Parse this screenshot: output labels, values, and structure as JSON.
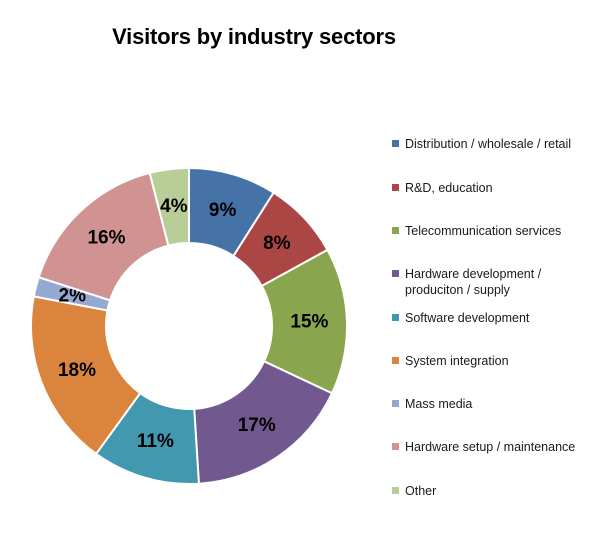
{
  "chart_data": {
    "type": "pie",
    "donut": true,
    "title": "Visitors by industry sectors",
    "legend_position": "right",
    "slices": [
      {
        "label": "Distribution / wholesale / retail",
        "value": 9,
        "display": "9%",
        "color": "#4572A7"
      },
      {
        "label": "R&D, education",
        "value": 8,
        "display": "8%",
        "color": "#AA4643"
      },
      {
        "label": "Telecommunication services",
        "value": 15,
        "display": "15%",
        "color": "#89A54E"
      },
      {
        "label": "Hardware development / produciton / supply",
        "value": 17,
        "display": "17%",
        "color": "#71588F"
      },
      {
        "label": "Software development",
        "value": 11,
        "display": "11%",
        "color": "#4198AF"
      },
      {
        "label": "System integration",
        "value": 18,
        "display": "18%",
        "color": "#DB843D"
      },
      {
        "label": "Mass media",
        "value": 2,
        "display": "2%",
        "color": "#93A9CF"
      },
      {
        "label": "Hardware setup / maintenance",
        "value": 16,
        "display": "16%",
        "color": "#D19392"
      },
      {
        "label": "Other",
        "value": 4,
        "display": "4%",
        "color": "#B9CD96"
      }
    ]
  }
}
